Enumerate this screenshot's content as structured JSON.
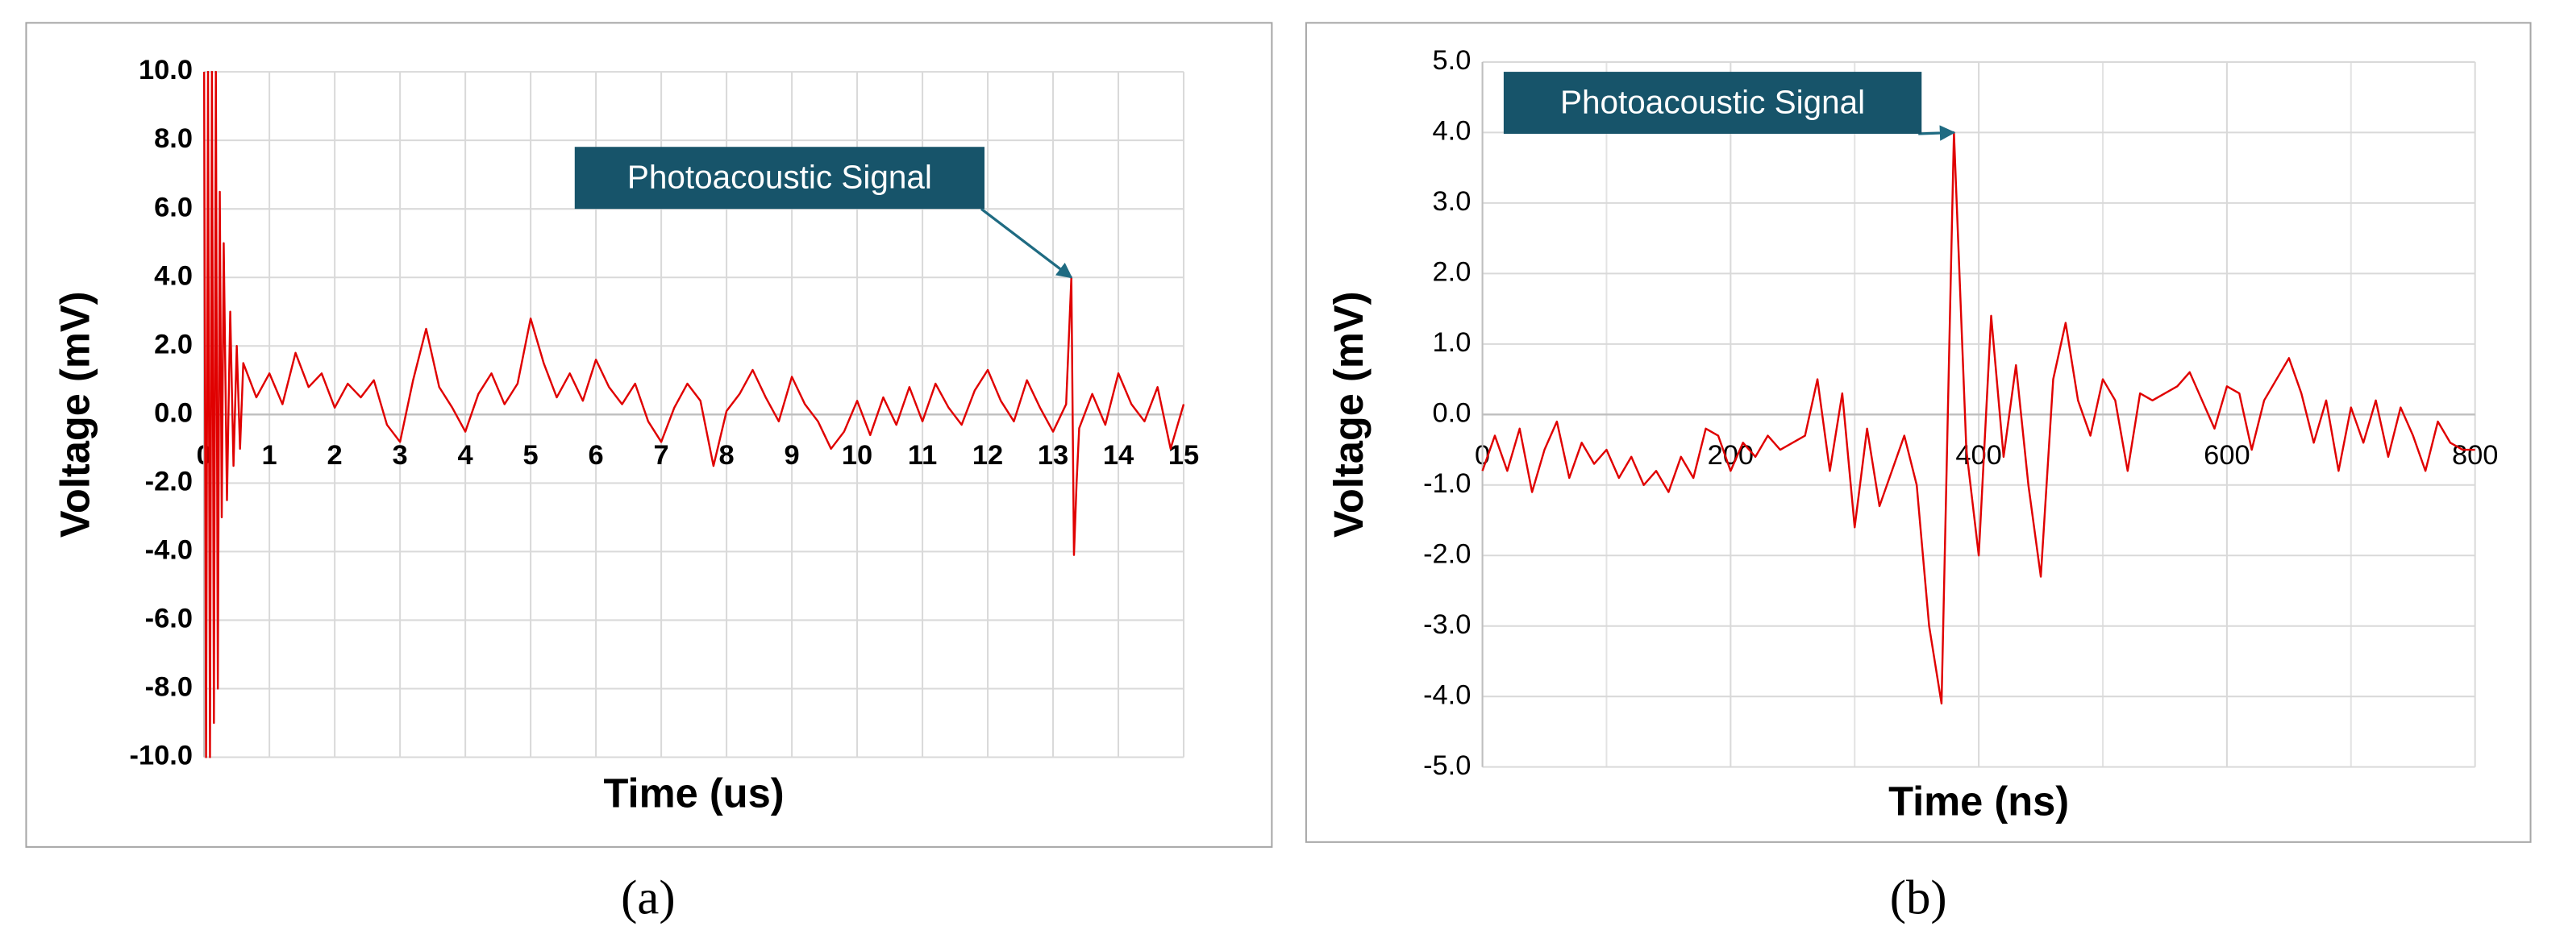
{
  "chart_data": [
    {
      "type": "line",
      "xlabel": "Time (us)",
      "ylabel": "Voltage (mV)",
      "caption": "(a)",
      "grid": true,
      "xlim": [
        0,
        15
      ],
      "xticks": [
        0,
        1,
        2,
        3,
        4,
        5,
        6,
        7,
        8,
        9,
        10,
        11,
        12,
        13,
        14,
        15
      ],
      "ylim": [
        -10,
        10
      ],
      "yticks": [
        {
          "value": 10,
          "label": "10.0"
        },
        {
          "value": 8,
          "label": "8.0"
        },
        {
          "value": 6,
          "label": "6.0"
        },
        {
          "value": 4,
          "label": "4.0"
        },
        {
          "value": 2,
          "label": "2.0"
        },
        {
          "value": 0,
          "label": "0.0"
        },
        {
          "value": -2,
          "label": "-2.0"
        },
        {
          "value": -4,
          "label": "-4.0"
        },
        {
          "value": -6,
          "label": "-6.0"
        },
        {
          "value": -8,
          "label": "-8.0"
        },
        {
          "value": -10,
          "label": "-10.0"
        }
      ],
      "annotation": {
        "text": "Photoacoustic Signal",
        "x": 13.28,
        "y": 4.0
      },
      "x": [
        0,
        0.03,
        0.06,
        0.09,
        0.12,
        0.15,
        0.18,
        0.21,
        0.24,
        0.27,
        0.3,
        0.35,
        0.4,
        0.45,
        0.5,
        0.55,
        0.6,
        0.8,
        1.0,
        1.2,
        1.4,
        1.6,
        1.8,
        2.0,
        2.2,
        2.4,
        2.6,
        2.8,
        3.0,
        3.2,
        3.4,
        3.6,
        3.8,
        4.0,
        4.2,
        4.4,
        4.6,
        4.8,
        5.0,
        5.2,
        5.4,
        5.6,
        5.8,
        6.0,
        6.2,
        6.4,
        6.6,
        6.8,
        7.0,
        7.2,
        7.4,
        7.6,
        7.8,
        8.0,
        8.2,
        8.4,
        8.6,
        8.8,
        9.0,
        9.2,
        9.4,
        9.6,
        9.8,
        10.0,
        10.2,
        10.4,
        10.6,
        10.8,
        11.0,
        11.2,
        11.4,
        11.6,
        11.8,
        12.0,
        12.2,
        12.4,
        12.6,
        12.8,
        13.0,
        13.2,
        13.28,
        13.32,
        13.36,
        13.4,
        13.6,
        13.8,
        14.0,
        14.2,
        14.4,
        14.6,
        14.8,
        15.0
      ],
      "series": [
        {
          "color": "#e00000",
          "values": [
            10,
            -10,
            10,
            -10,
            10,
            -9,
            10,
            -8,
            6.5,
            -3,
            5,
            -2.5,
            3,
            -1.5,
            2,
            -1,
            1.5,
            0.5,
            1.2,
            0.3,
            1.8,
            0.8,
            1.2,
            0.2,
            0.9,
            0.5,
            1.0,
            -0.3,
            -0.8,
            1.0,
            2.5,
            0.8,
            0.2,
            -0.5,
            0.6,
            1.2,
            0.3,
            0.9,
            2.8,
            1.5,
            0.5,
            1.2,
            0.4,
            1.6,
            0.8,
            0.3,
            0.9,
            -0.2,
            -0.8,
            0.2,
            0.9,
            0.4,
            -1.5,
            0.1,
            0.6,
            1.3,
            0.5,
            -0.2,
            1.1,
            0.3,
            -0.2,
            -1.0,
            -0.5,
            0.4,
            -0.6,
            0.5,
            -0.3,
            0.8,
            -0.2,
            0.9,
            0.2,
            -0.3,
            0.7,
            1.3,
            0.4,
            -0.2,
            1.0,
            0.2,
            -0.5,
            0.3,
            4.0,
            -4.1,
            -2.0,
            -0.4,
            0.6,
            -0.3,
            1.2,
            0.3,
            -0.2,
            0.8,
            -1.0,
            0.3
          ]
        }
      ]
    },
    {
      "type": "line",
      "xlabel": "Time (ns)",
      "ylabel": "Voltage (mV)",
      "caption": "(b)",
      "grid": true,
      "xlim": [
        0,
        800
      ],
      "xticks": [
        0,
        200,
        400,
        600,
        800
      ],
      "x_minor_grid": [
        100,
        300,
        500,
        700
      ],
      "ylim": [
        -5,
        5
      ],
      "yticks": [
        {
          "value": 5,
          "label": "5.0"
        },
        {
          "value": 4,
          "label": "4.0"
        },
        {
          "value": 3,
          "label": "3.0"
        },
        {
          "value": 2,
          "label": "2.0"
        },
        {
          "value": 1,
          "label": "1.0"
        },
        {
          "value": 0,
          "label": "0.0"
        },
        {
          "value": -1,
          "label": "-1.0"
        },
        {
          "value": -2,
          "label": "-2.0"
        },
        {
          "value": -3,
          "label": "-3.0"
        },
        {
          "value": -4,
          "label": "-4.0"
        },
        {
          "value": -5,
          "label": "-5.0"
        }
      ],
      "annotation": {
        "text": "Photoacoustic Signal",
        "x": 380,
        "y": 4.0
      },
      "x": [
        0,
        10,
        20,
        30,
        40,
        50,
        60,
        70,
        80,
        90,
        100,
        110,
        120,
        130,
        140,
        150,
        160,
        170,
        180,
        190,
        200,
        210,
        220,
        230,
        240,
        250,
        260,
        270,
        280,
        290,
        300,
        310,
        320,
        330,
        340,
        350,
        360,
        370,
        380,
        390,
        400,
        410,
        420,
        430,
        440,
        450,
        460,
        470,
        480,
        490,
        500,
        510,
        520,
        530,
        540,
        550,
        560,
        570,
        580,
        590,
        600,
        610,
        620,
        630,
        640,
        650,
        660,
        670,
        680,
        690,
        700,
        710,
        720,
        730,
        740,
        750,
        760,
        770,
        780,
        790,
        800
      ],
      "series": [
        {
          "color": "#e00000",
          "values": [
            -0.8,
            -0.3,
            -0.8,
            -0.2,
            -1.1,
            -0.5,
            -0.1,
            -0.9,
            -0.4,
            -0.7,
            -0.5,
            -0.9,
            -0.6,
            -1.0,
            -0.8,
            -1.1,
            -0.6,
            -0.9,
            -0.2,
            -0.3,
            -0.8,
            -0.4,
            -0.6,
            -0.3,
            -0.5,
            -0.4,
            -0.3,
            0.5,
            -0.8,
            0.3,
            -1.6,
            -0.2,
            -1.3,
            -0.8,
            -0.3,
            -1.0,
            -3.0,
            -4.1,
            4.0,
            -0.5,
            -2.0,
            1.4,
            -0.6,
            0.7,
            -1.0,
            -2.3,
            0.5,
            1.3,
            0.2,
            -0.3,
            0.5,
            0.2,
            -0.8,
            0.3,
            0.2,
            0.3,
            0.4,
            0.6,
            0.2,
            -0.2,
            0.4,
            0.3,
            -0.5,
            0.2,
            0.5,
            0.8,
            0.3,
            -0.4,
            0.2,
            -0.8,
            0.1,
            -0.4,
            0.2,
            -0.6,
            0.1,
            -0.3,
            -0.8,
            -0.1,
            -0.4,
            -0.5,
            -0.5
          ]
        }
      ]
    }
  ]
}
